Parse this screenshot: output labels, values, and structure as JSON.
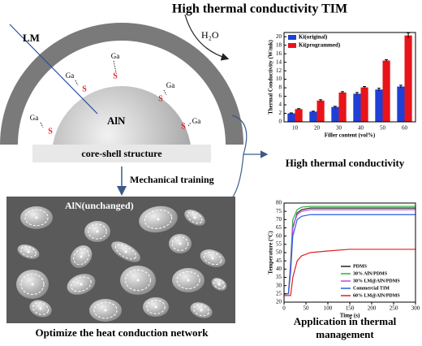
{
  "title": "High thermal conductivity TIM",
  "diagram": {
    "shell_label": "LM",
    "core_label": "AlN",
    "ligands": [
      {
        "metal": "Ga",
        "atom": "S"
      },
      {
        "metal": "Ga",
        "atom": "S"
      },
      {
        "metal": "Ga",
        "atom": "S"
      },
      {
        "metal": "Ga",
        "atom": "S"
      },
      {
        "metal": "Ga",
        "atom": "S"
      }
    ],
    "caption": "core-shell structure",
    "step": "Mechanical training",
    "solvent": "H₂O"
  },
  "network": {
    "label": "AlN(unchanged)",
    "caption": "Optimize the heat conduction network"
  },
  "captions": [
    "High thermal conductivity",
    "Application in thermal management"
  ],
  "chart_data": [
    {
      "type": "bar",
      "xlabel": "Filler content (vol%)",
      "ylabel": "Thermal Conductivity (W/mk)",
      "categories": [
        10,
        20,
        30,
        40,
        50,
        60
      ],
      "series": [
        {
          "name": "Ki(original)",
          "color": "#1f3fd6",
          "values": [
            2.0,
            2.4,
            3.5,
            6.6,
            7.6,
            8.3
          ],
          "errors": [
            0.1,
            0.1,
            0.15,
            0.3,
            0.3,
            0.3
          ]
        },
        {
          "name": "Ki(programmed)",
          "color": "#e8141a",
          "values": [
            3.0,
            5.0,
            6.9,
            8.1,
            14.4,
            20.3
          ],
          "errors": [
            0.1,
            0.2,
            0.2,
            0.2,
            0.2,
            0.6
          ]
        }
      ],
      "ylim": [
        0,
        21
      ],
      "yticks": [
        0,
        2,
        4,
        6,
        8,
        10,
        12,
        14,
        16,
        18,
        20
      ],
      "legend": "upper left"
    },
    {
      "type": "line",
      "xlabel": "Time (s)",
      "ylabel": "Temperature (°C)",
      "x": [
        0,
        10,
        15,
        20,
        30,
        40,
        60,
        100,
        150,
        200,
        250,
        300
      ],
      "series": [
        {
          "name": "PDMS",
          "color": "#222222",
          "values": [
            25,
            25,
            40,
            65,
            74,
            76,
            77,
            77,
            77,
            77,
            77,
            77
          ]
        },
        {
          "name": "30% AlN/PDMS",
          "color": "#2fae3c",
          "values": [
            25,
            25,
            45,
            70,
            76,
            77.5,
            78,
            78,
            78,
            78,
            78,
            78
          ]
        },
        {
          "name": "30% LM@AlN/PDMS",
          "color": "#c04bd6",
          "values": [
            25,
            25,
            42,
            66,
            73,
            75,
            76,
            76,
            76,
            76,
            76,
            76
          ]
        },
        {
          "name": "Commercial TIM",
          "color": "#2a5fe0",
          "values": [
            25,
            25,
            38,
            60,
            70,
            72,
            73,
            73,
            73,
            73,
            73,
            73
          ]
        },
        {
          "name": "60% LM@AlN/PDMS",
          "color": "#e02020",
          "values": [
            24,
            24,
            24,
            35,
            45,
            48,
            50,
            51,
            52,
            52,
            52,
            52
          ]
        }
      ],
      "xlim": [
        0,
        300
      ],
      "xticks": [
        0,
        50,
        100,
        150,
        200,
        250,
        300
      ],
      "ylim": [
        20,
        80
      ],
      "yticks": [
        20,
        25,
        30,
        35,
        40,
        45,
        50,
        55,
        60,
        65,
        70,
        75,
        80
      ],
      "legend": "lower right"
    }
  ]
}
